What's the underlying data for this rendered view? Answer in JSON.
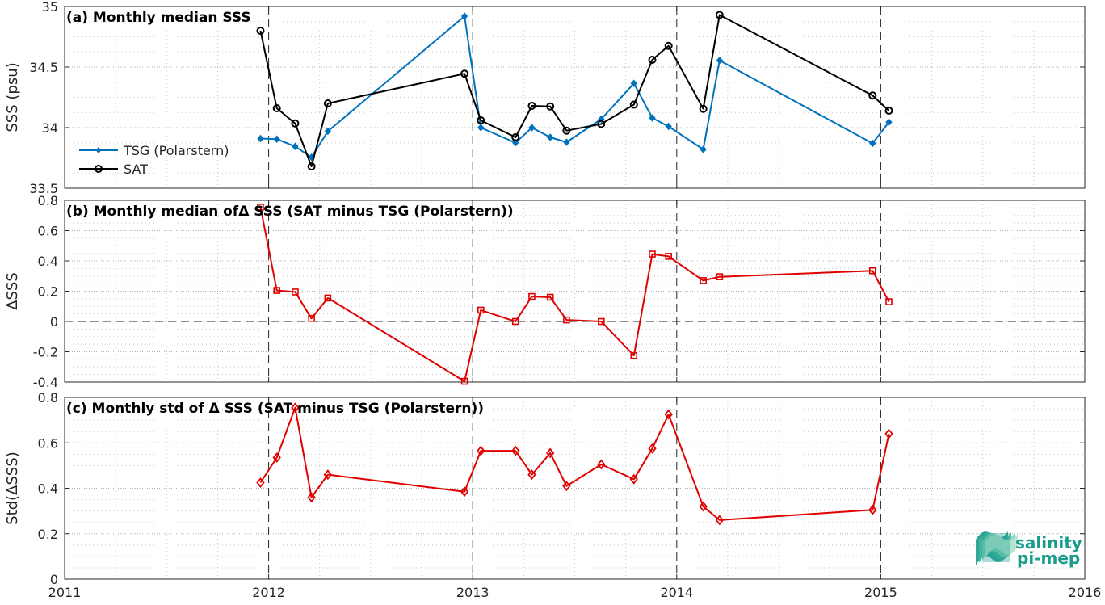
{
  "x_ticks": [
    "2011",
    "2012",
    "2013",
    "2014",
    "2015",
    "2016"
  ],
  "colors": {
    "tsg": "#0072BD",
    "sat": "#000000",
    "delta": "#E00000"
  },
  "logo": {
    "line1": "salinity",
    "line2": "pi-mep"
  },
  "chart_data": [
    {
      "type": "line",
      "title": "(a) Monthly median SSS",
      "ylabel": "SSS (psu)",
      "xlim": [
        2011,
        2016
      ],
      "ylim": [
        33.5,
        35
      ],
      "yticks": [
        33.5,
        34,
        34.5,
        35
      ],
      "ytick_labels": [
        "33.5",
        "34",
        "34.5",
        "35"
      ],
      "grid": true,
      "legend": "left",
      "series": [
        {
          "name": "TSG (Polarstern)",
          "marker": "diamond-filled",
          "x": [
            2011.96,
            2012.04,
            2012.13,
            2012.21,
            2012.29,
            2012.96,
            2013.04,
            2013.21,
            2013.29,
            2013.38,
            2013.46,
            2013.63,
            2013.79,
            2013.88,
            2013.96,
            2014.13,
            2014.21,
            2014.96,
            2015.04
          ],
          "values": [
            33.91,
            33.905,
            33.845,
            33.755,
            33.97,
            34.92,
            34.0,
            33.875,
            34.0,
            33.92,
            33.88,
            34.07,
            34.365,
            34.08,
            34.01,
            33.82,
            34.555,
            33.87,
            34.045
          ]
        },
        {
          "name": "SAT",
          "marker": "circle-open",
          "x": [
            2011.96,
            2012.04,
            2012.13,
            2012.21,
            2012.29,
            2012.96,
            2013.04,
            2013.21,
            2013.29,
            2013.38,
            2013.46,
            2013.63,
            2013.79,
            2013.88,
            2013.96,
            2014.13,
            2014.21,
            2014.96,
            2015.04
          ],
          "values": [
            34.8,
            34.16,
            34.035,
            33.68,
            34.2,
            34.445,
            34.06,
            33.92,
            34.18,
            34.175,
            33.975,
            34.03,
            34.19,
            34.56,
            34.675,
            34.155,
            34.93,
            34.265,
            34.14
          ]
        }
      ]
    },
    {
      "type": "line",
      "title": "(b) Monthly median ofΔ SSS (SAT minus TSG (Polarstern))",
      "ylabel": "ΔSSS",
      "xlim": [
        2011,
        2016
      ],
      "ylim": [
        -0.4,
        0.8
      ],
      "yticks": [
        -0.4,
        -0.2,
        0,
        0.2,
        0.4,
        0.6,
        0.8
      ],
      "ytick_labels": [
        "-0.4",
        "-0.2",
        "0",
        "0.2",
        "0.4",
        "0.6",
        "0.8"
      ],
      "grid": true,
      "zero_line": true,
      "series": [
        {
          "marker": "square-open",
          "x": [
            2011.96,
            2012.04,
            2012.13,
            2012.21,
            2012.29,
            2012.96,
            2013.04,
            2013.21,
            2013.29,
            2013.38,
            2013.46,
            2013.63,
            2013.79,
            2013.88,
            2013.96,
            2014.13,
            2014.21,
            2014.96,
            2015.04
          ],
          "values": [
            0.755,
            0.205,
            0.195,
            0.02,
            0.155,
            -0.395,
            0.075,
            0.0,
            0.165,
            0.16,
            0.01,
            0.0,
            -0.225,
            0.445,
            0.43,
            0.27,
            0.295,
            0.335,
            0.13
          ]
        }
      ]
    },
    {
      "type": "line",
      "title": "(c) Monthly std of Δ SSS (SAT minus TSG (Polarstern))",
      "ylabel": "Std(ΔSSS)",
      "xlim": [
        2011,
        2016
      ],
      "ylim": [
        0,
        0.8
      ],
      "yticks": [
        0,
        0.2,
        0.4,
        0.6,
        0.8
      ],
      "ytick_labels": [
        "0",
        "0.2",
        "0.4",
        "0.6",
        "0.8"
      ],
      "grid": true,
      "series": [
        {
          "marker": "diamond-open",
          "x": [
            2011.96,
            2012.04,
            2012.13,
            2012.21,
            2012.29,
            2012.96,
            2013.04,
            2013.21,
            2013.29,
            2013.38,
            2013.46,
            2013.63,
            2013.79,
            2013.88,
            2013.96,
            2014.13,
            2014.21,
            2014.96,
            2015.04
          ],
          "values": [
            0.425,
            0.535,
            0.755,
            0.36,
            0.46,
            0.385,
            0.565,
            0.565,
            0.46,
            0.555,
            0.41,
            0.505,
            0.44,
            0.575,
            0.725,
            0.32,
            0.26,
            0.305,
            0.64
          ]
        }
      ]
    }
  ]
}
